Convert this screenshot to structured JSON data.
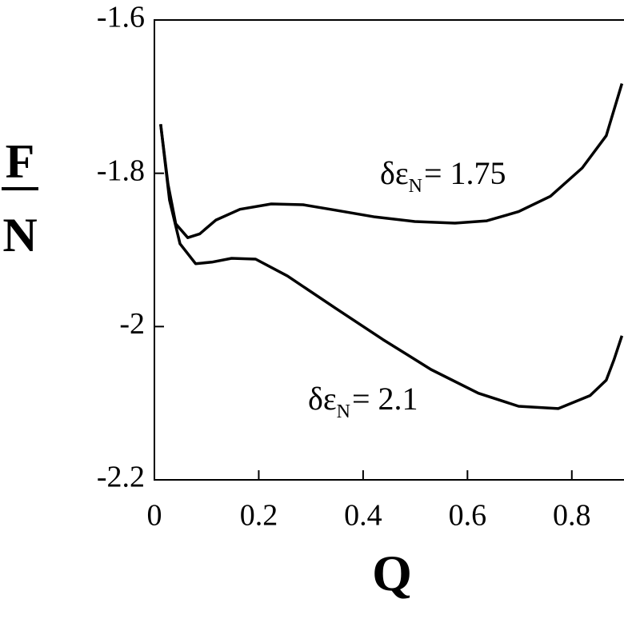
{
  "chart_data": {
    "type": "line",
    "x_label": "Q",
    "y_label": {
      "numerator": "F",
      "denominator": "N"
    },
    "xlim": [
      0,
      0.9
    ],
    "xticks": [
      0,
      0.2,
      0.4,
      0.6,
      0.8
    ],
    "ylim": [
      -2.2,
      -1.6
    ],
    "yticks": [
      -1.6,
      -1.8,
      -2,
      -2.2
    ],
    "color": "#000000",
    "series": [
      {
        "x": [
          0.012,
          0.026,
          0.041,
          0.064,
          0.087,
          0.118,
          0.164,
          0.224,
          0.285,
          0.346,
          0.423,
          0.499,
          0.576,
          0.637,
          0.698,
          0.759,
          0.82,
          0.866,
          0.896
        ],
        "values": [
          -1.736,
          -1.814,
          -1.866,
          -1.884,
          -1.879,
          -1.861,
          -1.847,
          -1.84,
          -1.841,
          -1.848,
          -1.857,
          -1.863,
          -1.865,
          -1.862,
          -1.85,
          -1.83,
          -1.793,
          -1.751,
          -1.683
        ]
      },
      {
        "x": [
          0.012,
          0.029,
          0.049,
          0.079,
          0.11,
          0.148,
          0.194,
          0.255,
          0.347,
          0.438,
          0.53,
          0.621,
          0.698,
          0.774,
          0.835,
          0.866,
          0.881,
          0.896
        ],
        "values": [
          -1.736,
          -1.835,
          -1.892,
          -1.918,
          -1.916,
          -1.911,
          -1.912,
          -1.934,
          -1.976,
          -2.017,
          -2.056,
          -2.087,
          -2.104,
          -2.107,
          -2.09,
          -2.07,
          -2.043,
          -2.012
        ]
      }
    ],
    "annotations": [
      {
        "symbol": "δε",
        "subscript": "N",
        "text": "= 1.75"
      },
      {
        "symbol": "δε",
        "subscript": "N",
        "text": "= 2.1"
      }
    ]
  }
}
